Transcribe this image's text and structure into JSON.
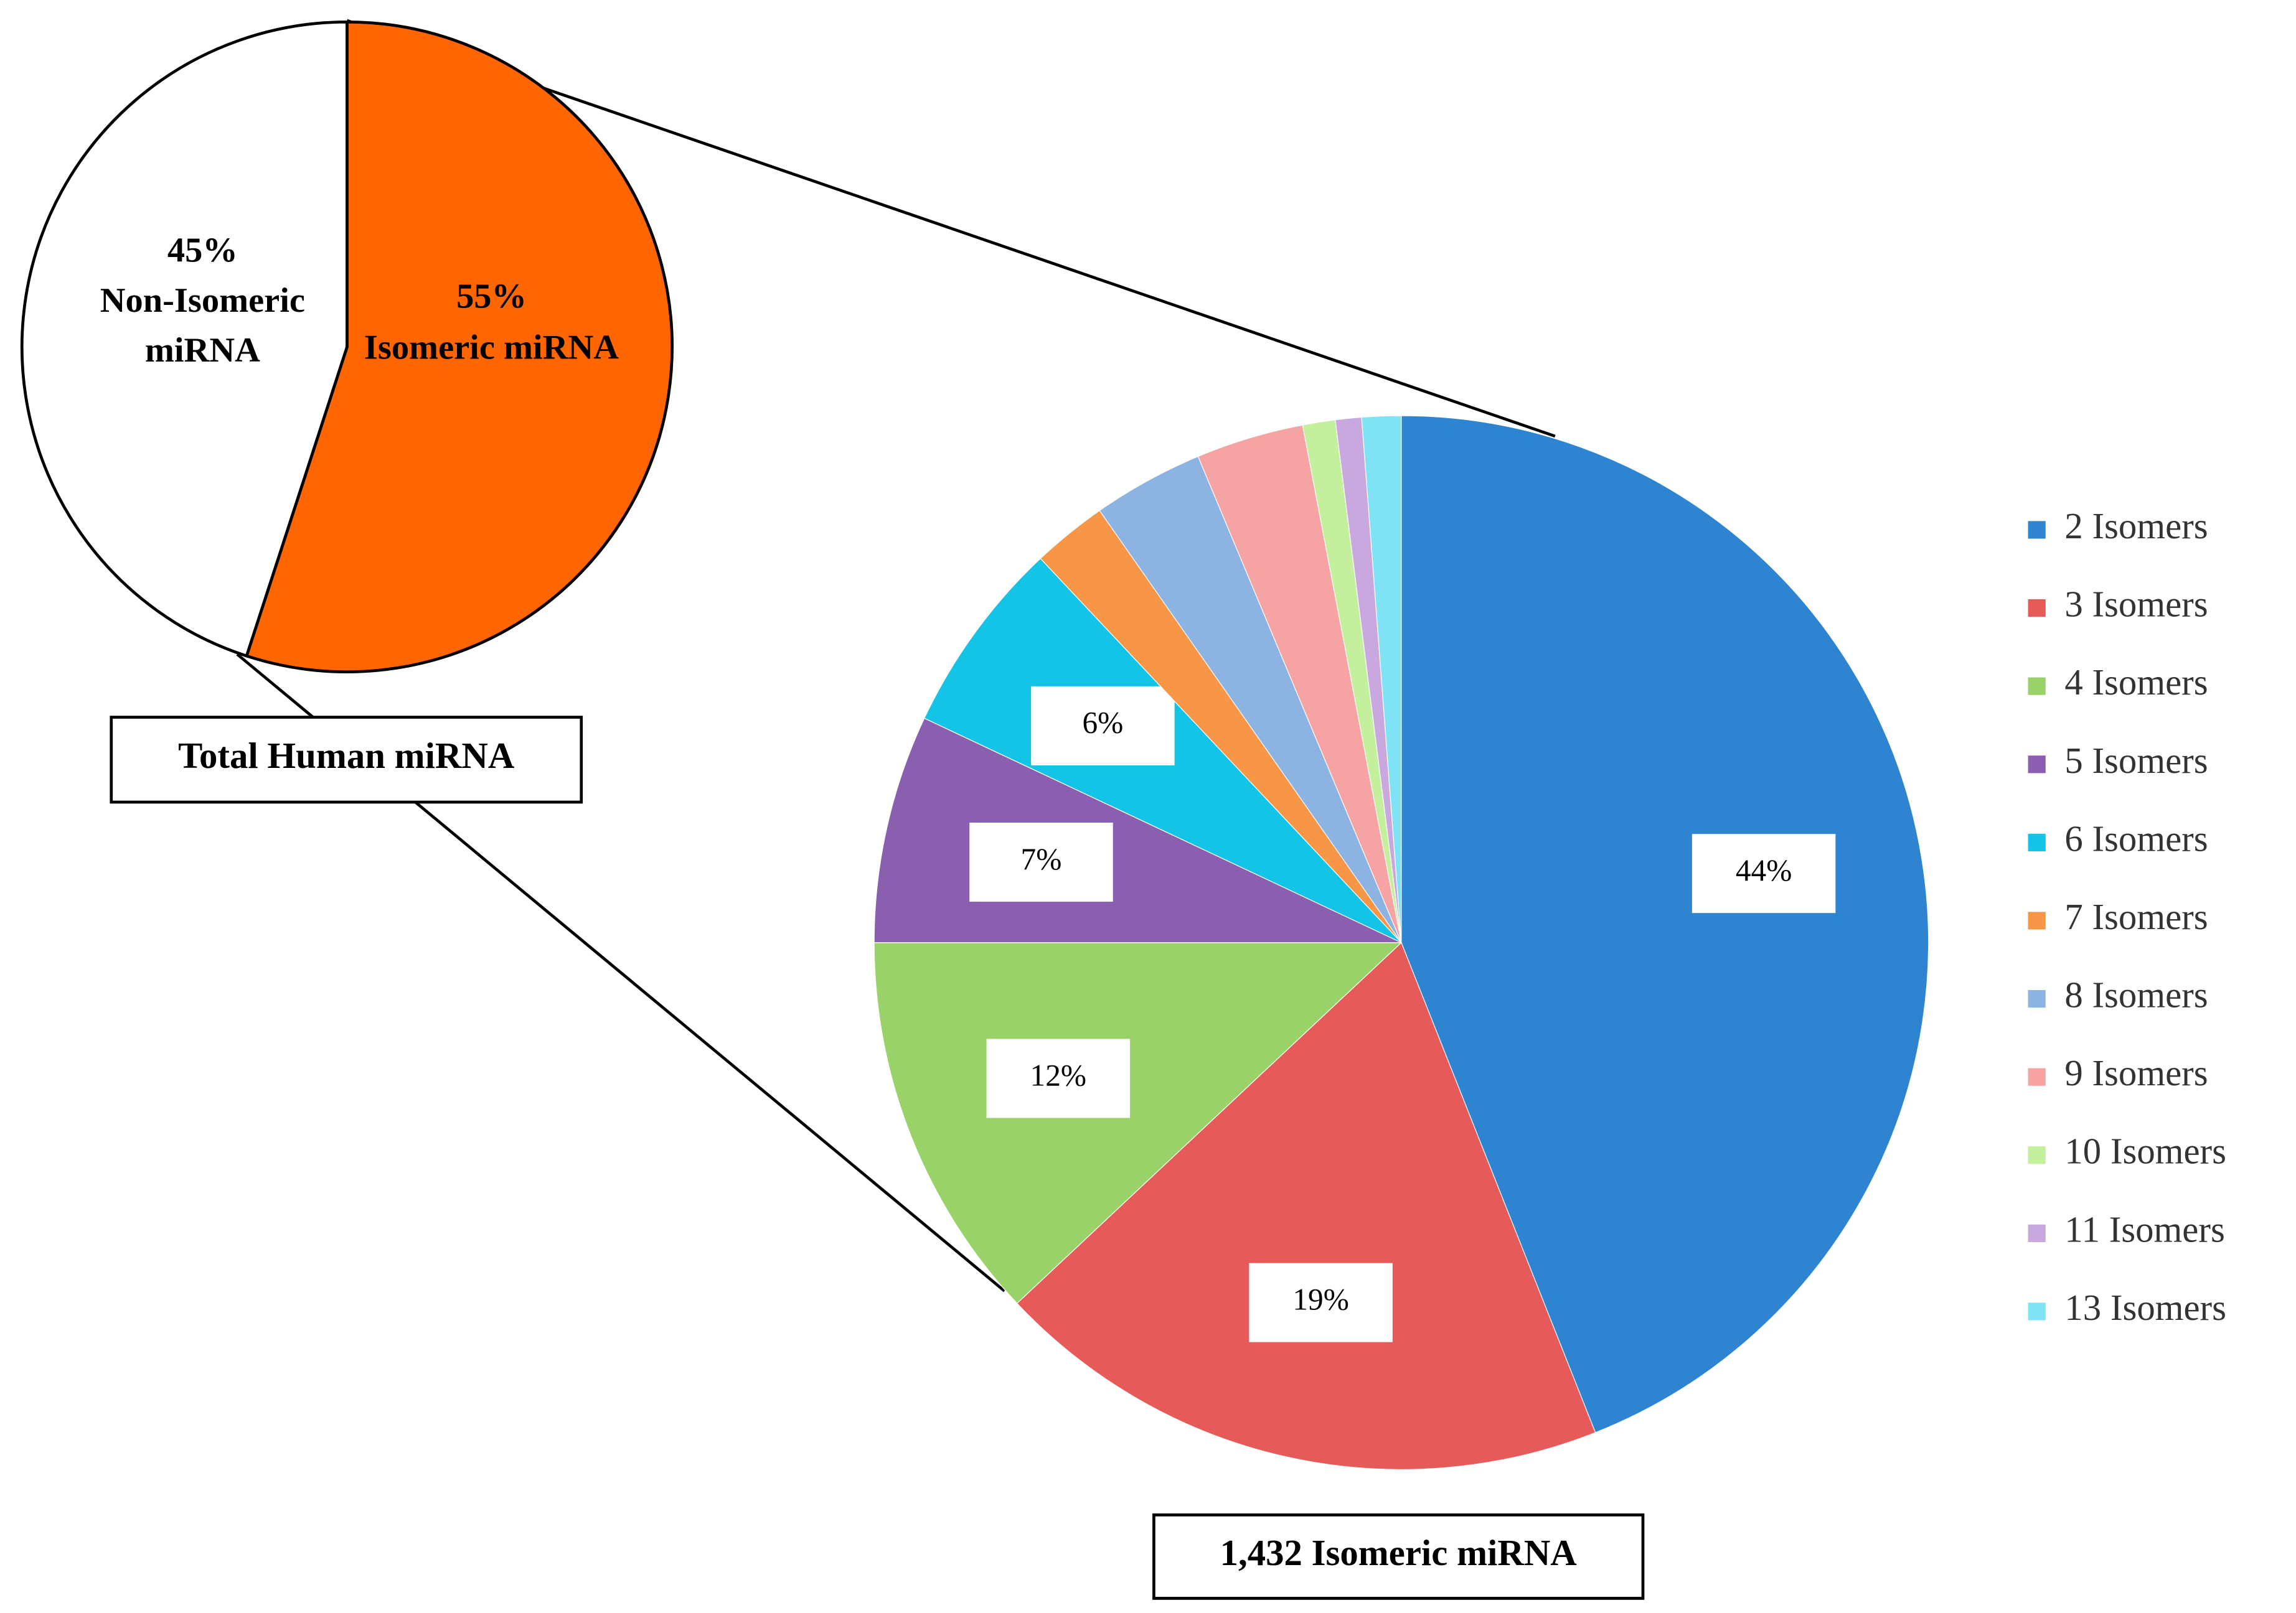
{
  "chart_data": [
    {
      "type": "pie",
      "caption": "Total Human miRNA",
      "categories": [
        "Isomeric miRNA",
        "Non-Isomeric miRNA"
      ],
      "values": [
        55,
        45
      ],
      "value_labels": [
        "55%",
        "45%"
      ],
      "colors": [
        "#ff6600",
        "#ffffff"
      ]
    },
    {
      "type": "pie",
      "caption": "1,432 Isomeric miRNA",
      "legend": "right",
      "categories": [
        "2 Isomers",
        "3 Isomers",
        "4 Isomers",
        "5 Isomers",
        "6 Isomers",
        "7 Isomers",
        "8 Isomers",
        "9 Isomers",
        "10 Isomers",
        "11 Isomers",
        "13 Isomers"
      ],
      "values": [
        44,
        19,
        12,
        7,
        6,
        2.3,
        3.4,
        3.3,
        1,
        0.8,
        1.2
      ],
      "value_labels": [
        "44%",
        "19%",
        "12%",
        "7%",
        "6%",
        null,
        null,
        null,
        null,
        null,
        null
      ],
      "colors": [
        "#2f84d2",
        "#e65a5a",
        "#9ad26a",
        "#8a5fb0",
        "#14c4e6",
        "#f79646",
        "#8db3e2",
        "#f5a3a3",
        "#c4ef9c",
        "#c9a8df",
        "#7fe3f5"
      ]
    }
  ]
}
